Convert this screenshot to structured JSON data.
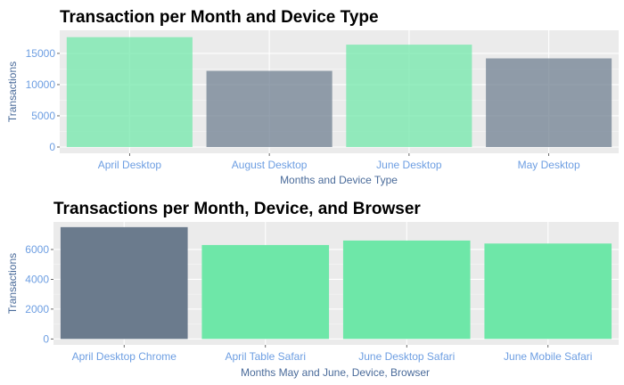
{
  "colors": {
    "green": "#6ee7a8",
    "slate": "#6b7b8d",
    "panel": "#ebebeb",
    "grid": "#ffffff"
  },
  "chart_data": [
    {
      "type": "bar",
      "title": "Transaction per Month and Device Type",
      "xlabel": "Months and Device Type",
      "ylabel": "Transactions",
      "categories": [
        "April Desktop",
        "August Desktop",
        "June Desktop",
        "May Desktop"
      ],
      "values": [
        17600,
        12200,
        16400,
        14200
      ],
      "bar_colors": [
        "#6ee7a8",
        "#6b7b8d",
        "#6ee7a8",
        "#6b7b8d"
      ],
      "bar_opacity": 0.72,
      "ylim": [
        -1000,
        18700
      ],
      "yticks": [
        0,
        5000,
        10000,
        15000
      ],
      "ytick_labels": [
        "0",
        "5000",
        "10000",
        "15000"
      ],
      "grid": true
    },
    {
      "type": "bar",
      "title": "Transactions per Month, Device, and Browser",
      "xlabel": "Months May and June, Device, Browser",
      "ylabel": "Transactions",
      "categories": [
        "April Desktop Chrome",
        "April Table Safari",
        "June Desktop Safari",
        "June Mobile Safari"
      ],
      "values": [
        7500,
        6300,
        6600,
        6400
      ],
      "bar_colors": [
        "#6b7b8d",
        "#6ee7a8",
        "#6ee7a8",
        "#6ee7a8"
      ],
      "bar_opacity": 1,
      "ylim": [
        -400,
        7850
      ],
      "yticks": [
        0,
        2000,
        4000,
        6000
      ],
      "ytick_labels": [
        "0",
        "2000",
        "4000",
        "6000"
      ],
      "grid": true
    }
  ]
}
